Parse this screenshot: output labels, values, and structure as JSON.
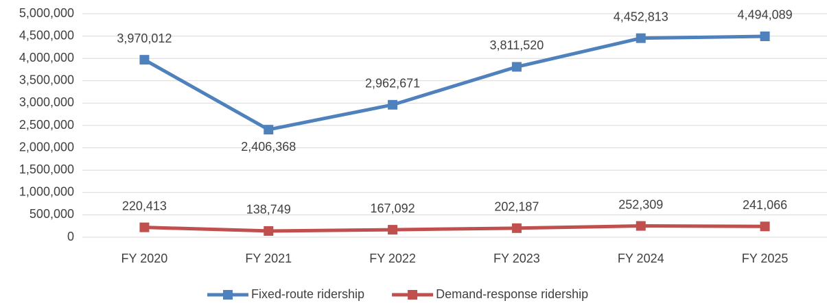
{
  "chart_data": {
    "type": "line",
    "categories": [
      "FY 2020",
      "FY 2021",
      "FY 2022",
      "FY 2023",
      "FY 2024",
      "FY 2025"
    ],
    "series": [
      {
        "name": "Fixed-route ridership",
        "color": "#4f81bd",
        "values": [
          3970012,
          2406368,
          2962671,
          3811520,
          4452813,
          4494089
        ],
        "value_labels": [
          "3,970,012",
          "2,406,368",
          "2,962,671",
          "3,811,520",
          "4,452,813",
          "4,494,089"
        ]
      },
      {
        "name": "Demand-response ridership",
        "color": "#c0504d",
        "values": [
          220413,
          138749,
          167092,
          202187,
          252309,
          241066
        ],
        "value_labels": [
          "220,413",
          "138,749",
          "167,092",
          "202,187",
          "252,309",
          "241,066"
        ]
      }
    ],
    "ylim": [
      0,
      5000000
    ],
    "yticks": [
      0,
      {
        "value": 500000,
        "label": "500,000"
      },
      {
        "value": 1000000,
        "label": "1,000,000"
      },
      {
        "value": 1500000,
        "label": "1,500,000"
      },
      {
        "value": 2000000,
        "label": "2,000,000"
      },
      {
        "value": 2500000,
        "label": "2,500,000"
      },
      {
        "value": 3000000,
        "label": "3,000,000"
      },
      {
        "value": 3500000,
        "label": "3,500,000"
      },
      {
        "value": 4000000,
        "label": "4,000,000"
      },
      {
        "value": 4500000,
        "label": "4,500,000"
      },
      {
        "value": 5000000,
        "label": "5,000,000"
      }
    ],
    "grid": true,
    "legend": "bottom"
  }
}
